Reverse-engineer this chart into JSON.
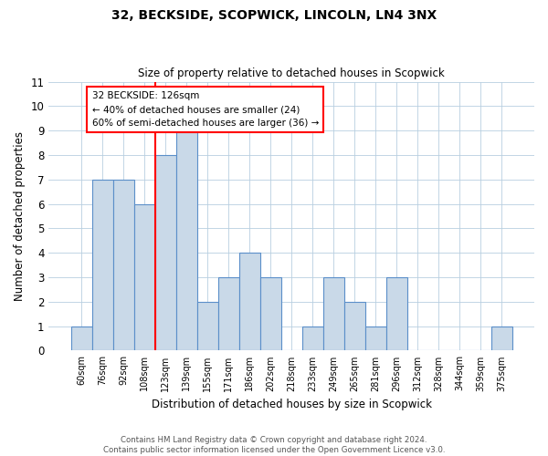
{
  "title": "32, BECKSIDE, SCOPWICK, LINCOLN, LN4 3NX",
  "subtitle": "Size of property relative to detached houses in Scopwick",
  "xlabel": "Distribution of detached houses by size in Scopwick",
  "ylabel": "Number of detached properties",
  "bin_labels": [
    "60sqm",
    "76sqm",
    "92sqm",
    "108sqm",
    "123sqm",
    "139sqm",
    "155sqm",
    "171sqm",
    "186sqm",
    "202sqm",
    "218sqm",
    "233sqm",
    "249sqm",
    "265sqm",
    "281sqm",
    "296sqm",
    "312sqm",
    "328sqm",
    "344sqm",
    "359sqm",
    "375sqm"
  ],
  "bar_heights": [
    1,
    7,
    7,
    6,
    8,
    9,
    2,
    3,
    4,
    3,
    0,
    1,
    3,
    2,
    1,
    3,
    0,
    0,
    0,
    0,
    1
  ],
  "bar_color": "#c9d9e8",
  "bar_edgecolor": "#5b8fc9",
  "red_line_bin_index": 4,
  "annotation_title": "32 BECKSIDE: 126sqm",
  "annotation_line1": "← 40% of detached houses are smaller (24)",
  "annotation_line2": "60% of semi-detached houses are larger (36) →",
  "ylim": [
    0,
    11
  ],
  "yticks": [
    0,
    1,
    2,
    3,
    4,
    5,
    6,
    7,
    8,
    9,
    10,
    11
  ],
  "footer_line1": "Contains HM Land Registry data © Crown copyright and database right 2024.",
  "footer_line2": "Contains public sector information licensed under the Open Government Licence v3.0.",
  "bg_color": "#ffffff",
  "grid_color": "#b8cfe0"
}
